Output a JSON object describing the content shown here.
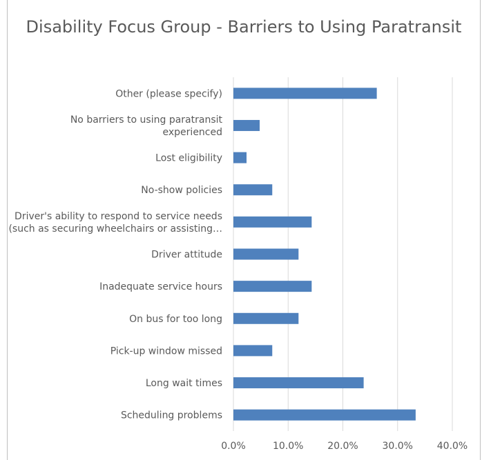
{
  "chart_data": {
    "type": "bar",
    "orientation": "horizontal",
    "title": "Disability Focus Group - Barriers to Using Paratransit",
    "categories": [
      "Scheduling problems",
      "Long wait times",
      "Pick-up window missed",
      "On bus for too long",
      "Inadequate service hours",
      "Driver attitude",
      "Driver's ability to respond to service needs (such as securing wheelchairs or assisting…",
      "No-show policies",
      "Lost eligibility",
      "No barriers to using paratransit experienced",
      "Other (please specify)"
    ],
    "category_lines": [
      [
        "Scheduling problems"
      ],
      [
        "Long wait times"
      ],
      [
        "Pick-up window missed"
      ],
      [
        "On bus for too long"
      ],
      [
        "Inadequate service hours"
      ],
      [
        "Driver attitude"
      ],
      [
        "Driver's ability to respond to service needs",
        "(such as securing wheelchairs or assisting…"
      ],
      [
        "No-show policies"
      ],
      [
        "Lost eligibility"
      ],
      [
        "No barriers to using paratransit",
        "experienced"
      ],
      [
        "Other (please specify)"
      ]
    ],
    "values": [
      33.3,
      23.8,
      7.1,
      11.9,
      14.3,
      11.9,
      14.3,
      7.1,
      2.4,
      4.8,
      26.2
    ],
    "xlim": [
      0,
      40
    ],
    "xticks": [
      0,
      10,
      20,
      30,
      40
    ],
    "xtick_labels": [
      "0.0%",
      "10.0%",
      "20.0%",
      "30.0%",
      "40.0%"
    ],
    "bar_color": "#4f81bd",
    "gridlines": true,
    "xlabel": "",
    "ylabel": "",
    "legend": "none"
  }
}
